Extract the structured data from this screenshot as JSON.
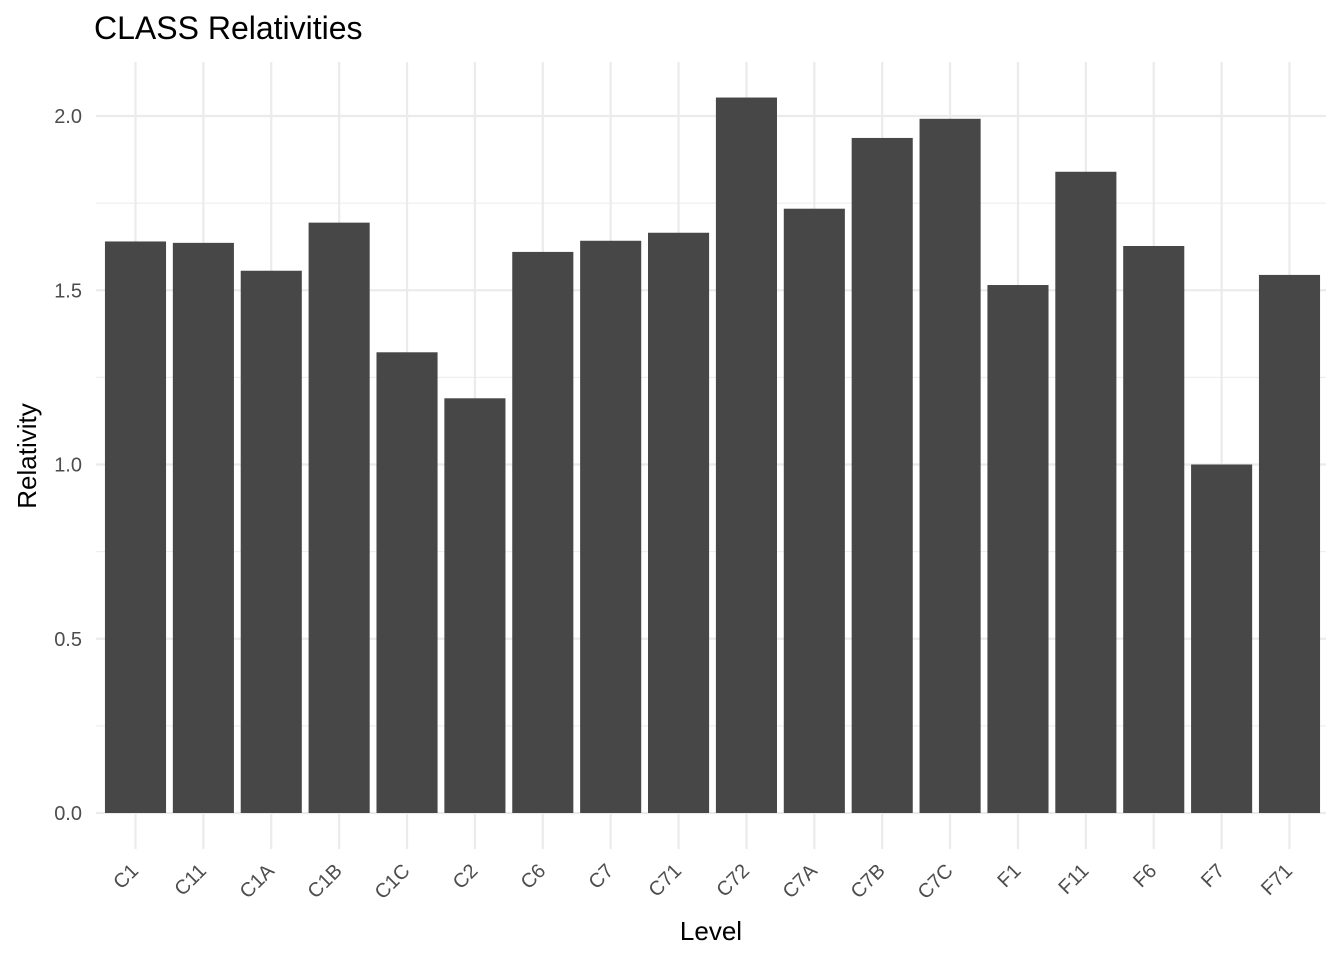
{
  "chart_data": {
    "type": "bar",
    "title": "CLASS Relativities",
    "xlabel": "Level",
    "ylabel": "Relativity",
    "categories": [
      "C1",
      "C11",
      "C1A",
      "C1B",
      "C1C",
      "C2",
      "C6",
      "C7",
      "C71",
      "C72",
      "C7A",
      "C7B",
      "C7C",
      "F1",
      "F11",
      "F6",
      "F7",
      "F71"
    ],
    "values": [
      1.64,
      1.636,
      1.556,
      1.694,
      1.322,
      1.19,
      1.61,
      1.642,
      1.665,
      2.053,
      1.734,
      1.937,
      1.992,
      1.515,
      1.84,
      1.627,
      1.0,
      1.544
    ],
    "ylim": [
      0,
      2.15
    ],
    "yticks": [
      0.0,
      0.5,
      1.0,
      1.5,
      2.0
    ],
    "ytick_labels": [
      "0.0",
      "0.5",
      "1.0",
      "1.5",
      "2.0"
    ],
    "grid": true,
    "legend": "none",
    "bar_color": "#474747"
  }
}
